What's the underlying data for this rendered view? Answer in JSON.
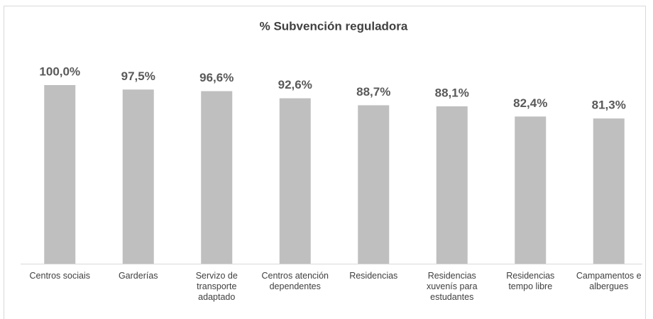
{
  "chart_data": {
    "type": "bar",
    "title": "% Subvención reguladora",
    "categories": [
      "Centros sociais",
      "Garderías",
      "Servizo de transporte adaptado",
      "Centros atención dependentes",
      "Residencias",
      "Residencias xuvenís para estudantes",
      "Residencias tempo libre",
      "Campamentos e albergues"
    ],
    "values": [
      100.0,
      97.5,
      96.6,
      92.6,
      88.7,
      88.1,
      82.4,
      81.3
    ],
    "value_labels": [
      "100,0%",
      "97,5%",
      "96,6%",
      "92,6%",
      "88,7%",
      "88,1%",
      "82,4%",
      "81,3%"
    ],
    "color": "#bfbfbf",
    "ylim": [
      0,
      100
    ]
  }
}
